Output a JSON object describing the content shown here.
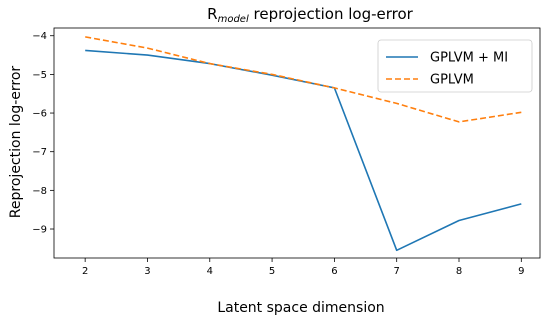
{
  "chart_data": {
    "type": "line",
    "title": {
      "prefix": "R",
      "subscript": "model",
      "suffix": " reprojection log-error"
    },
    "xlabel": "Latent space dimension",
    "ylabel": "Reprojection log-error",
    "x": [
      2,
      3,
      4,
      5,
      6,
      7,
      8,
      9
    ],
    "xlim": [
      1.5,
      9.3
    ],
    "ylim": [
      -9.75,
      -3.8
    ],
    "xticks": [
      2,
      3,
      4,
      5,
      6,
      7,
      8,
      9
    ],
    "yticks": [
      -4,
      -5,
      -6,
      -7,
      -8,
      -9
    ],
    "tick_labels": {
      "x": [
        "2",
        "3",
        "4",
        "5",
        "6",
        "7",
        "8",
        "9"
      ],
      "y": [
        "−4",
        "−5",
        "−6",
        "−7",
        "−8",
        "−9"
      ]
    },
    "grid": false,
    "legend_position": "top-right",
    "series": [
      {
        "name": "GPLVM + MI",
        "style": "solid",
        "color": "#1f77b4",
        "values": [
          -4.38,
          -4.5,
          -4.72,
          -5.02,
          -5.35,
          -9.55,
          -8.78,
          -8.35
        ]
      },
      {
        "name": "GPLVM",
        "style": "dashed",
        "color": "#ff7f0e",
        "values": [
          -4.03,
          -4.32,
          -4.72,
          -5.0,
          -5.35,
          -5.75,
          -6.23,
          -5.98
        ]
      }
    ]
  }
}
